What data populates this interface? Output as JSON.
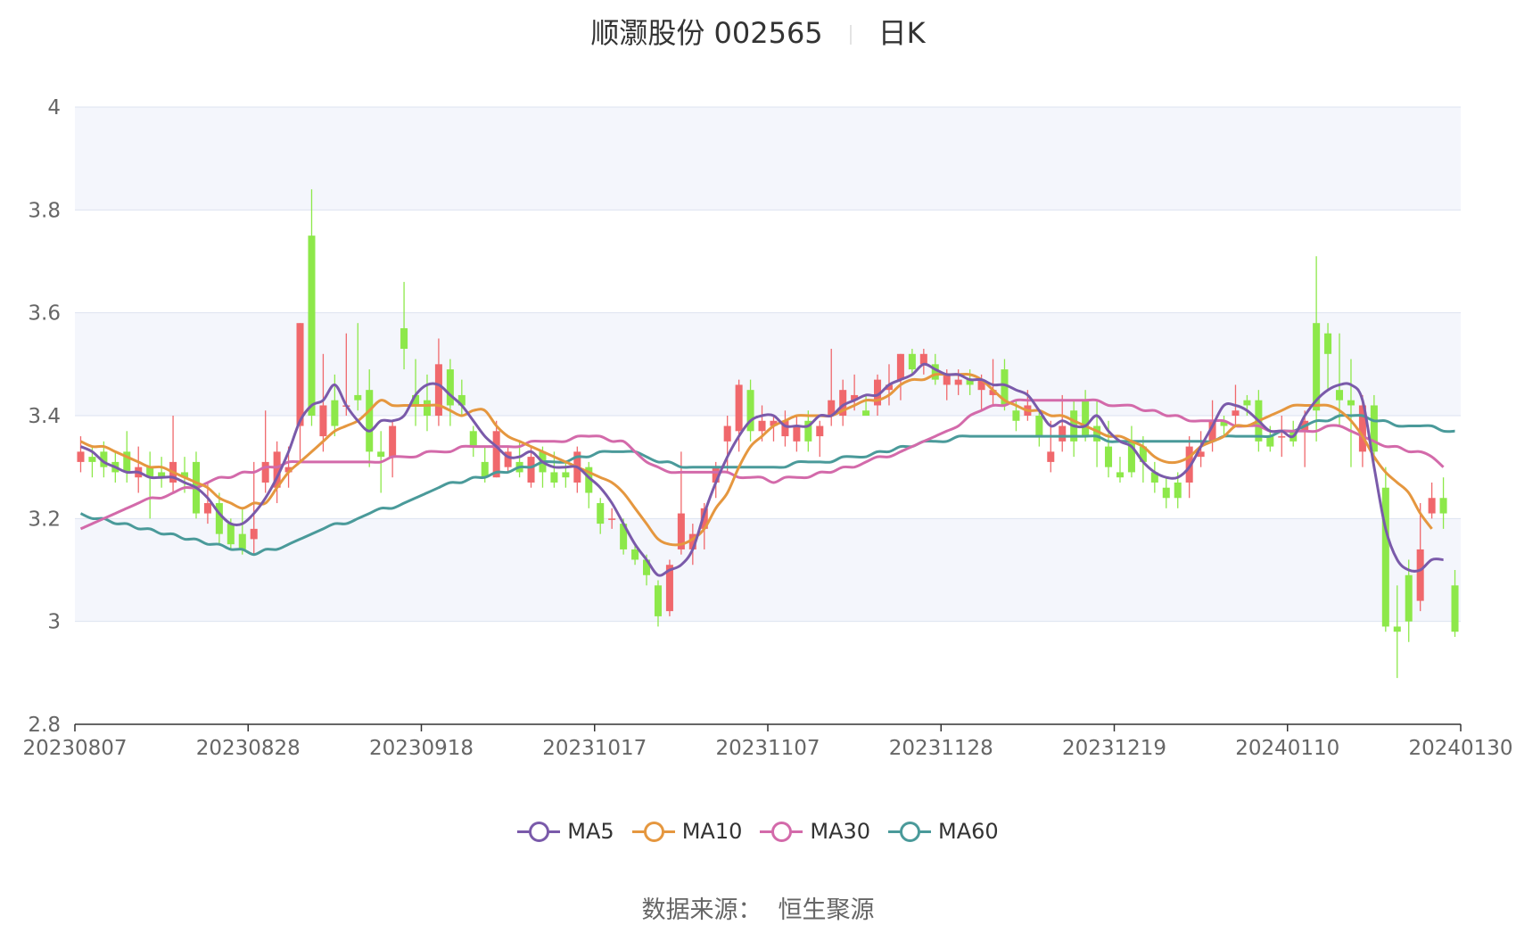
{
  "header": {
    "stock": "顺灏股份 002565",
    "period": "日K"
  },
  "source": {
    "label": "数据来源：",
    "provider": "恒生聚源"
  },
  "colors": {
    "up": "#f0686c",
    "down": "#8de84a",
    "grid": "#dde3f0",
    "band": "#f4f6fc",
    "axis": "#333333",
    "text": "#666666"
  },
  "chart_data": {
    "type": "candlestick",
    "title": "顺灏股份 002565 日K",
    "ylim": [
      2.8,
      4
    ],
    "y_ticks": [
      "4",
      "3.8",
      "3.6",
      "3.4",
      "3.2",
      "3",
      "2.8"
    ],
    "y_tick_values": [
      4,
      3.8,
      3.6,
      3.4,
      3.2,
      3,
      2.8
    ],
    "x_ticks": [
      {
        "index": 0,
        "label": "20230807"
      },
      {
        "index": 15,
        "label": "20230828"
      },
      {
        "index": 30,
        "label": "20230918"
      },
      {
        "index": 45,
        "label": "20231017"
      },
      {
        "index": 60,
        "label": "20231107"
      },
      {
        "index": 75,
        "label": "20231128"
      },
      {
        "index": 90,
        "label": "20231219"
      },
      {
        "index": 105,
        "label": "20240110"
      },
      {
        "index": 119,
        "label": "20240130"
      }
    ],
    "candles": [
      [
        3.31,
        3.33,
        3.36,
        3.29
      ],
      [
        3.32,
        3.31,
        3.34,
        3.28
      ],
      [
        3.33,
        3.3,
        3.35,
        3.28
      ],
      [
        3.31,
        3.29,
        3.33,
        3.27
      ],
      [
        3.33,
        3.29,
        3.37,
        3.27
      ],
      [
        3.28,
        3.3,
        3.34,
        3.25
      ],
      [
        3.3,
        3.28,
        3.33,
        3.2
      ],
      [
        3.29,
        3.28,
        3.32,
        3.26
      ],
      [
        3.27,
        3.31,
        3.4,
        3.25
      ],
      [
        3.29,
        3.28,
        3.32,
        3.25
      ],
      [
        3.31,
        3.21,
        3.33,
        3.2
      ],
      [
        3.21,
        3.23,
        3.27,
        3.19
      ],
      [
        3.23,
        3.17,
        3.25,
        3.15
      ],
      [
        3.19,
        3.15,
        3.2,
        3.14
      ],
      [
        3.17,
        3.14,
        3.22,
        3.13
      ],
      [
        3.16,
        3.18,
        3.31,
        3.13
      ],
      [
        3.27,
        3.31,
        3.41,
        3.25
      ],
      [
        3.26,
        3.33,
        3.35,
        3.23
      ],
      [
        3.29,
        3.3,
        3.34,
        3.26
      ],
      [
        3.38,
        3.58,
        3.58,
        3.31
      ],
      [
        3.75,
        3.4,
        3.84,
        3.38
      ],
      [
        3.36,
        3.42,
        3.52,
        3.33
      ],
      [
        3.43,
        3.38,
        3.48,
        3.36
      ],
      [
        3.42,
        3.42,
        3.56,
        3.4
      ],
      [
        3.44,
        3.43,
        3.58,
        3.41
      ],
      [
        3.45,
        3.33,
        3.49,
        3.3
      ],
      [
        3.33,
        3.32,
        3.37,
        3.25
      ],
      [
        3.32,
        3.38,
        3.39,
        3.28
      ],
      [
        3.57,
        3.53,
        3.66,
        3.49
      ],
      [
        3.44,
        3.42,
        3.51,
        3.38
      ],
      [
        3.43,
        3.4,
        3.48,
        3.37
      ],
      [
        3.4,
        3.5,
        3.55,
        3.38
      ],
      [
        3.49,
        3.42,
        3.51,
        3.38
      ],
      [
        3.44,
        3.42,
        3.47,
        3.4
      ],
      [
        3.37,
        3.34,
        3.38,
        3.32
      ],
      [
        3.31,
        3.28,
        3.34,
        3.27
      ],
      [
        3.28,
        3.37,
        3.39,
        3.28
      ],
      [
        3.3,
        3.33,
        3.34,
        3.29
      ],
      [
        3.31,
        3.29,
        3.35,
        3.28
      ],
      [
        3.27,
        3.32,
        3.34,
        3.26
      ],
      [
        3.33,
        3.29,
        3.34,
        3.26
      ],
      [
        3.29,
        3.27,
        3.33,
        3.26
      ],
      [
        3.29,
        3.28,
        3.31,
        3.26
      ],
      [
        3.27,
        3.33,
        3.34,
        3.25
      ],
      [
        3.3,
        3.25,
        3.31,
        3.22
      ],
      [
        3.23,
        3.19,
        3.24,
        3.17
      ],
      [
        3.2,
        3.2,
        3.22,
        3.18
      ],
      [
        3.19,
        3.14,
        3.2,
        3.13
      ],
      [
        3.14,
        3.12,
        3.15,
        3.11
      ],
      [
        3.12,
        3.09,
        3.13,
        3.07
      ],
      [
        3.07,
        3.01,
        3.08,
        2.99
      ],
      [
        3.02,
        3.11,
        3.12,
        3.01
      ],
      [
        3.14,
        3.21,
        3.33,
        3.13
      ],
      [
        3.14,
        3.17,
        3.19,
        3.11
      ],
      [
        3.18,
        3.22,
        3.23,
        3.14
      ],
      [
        3.27,
        3.3,
        3.31,
        3.24
      ],
      [
        3.35,
        3.38,
        3.4,
        3.29
      ],
      [
        3.37,
        3.46,
        3.47,
        3.33
      ],
      [
        3.45,
        3.37,
        3.47,
        3.35
      ],
      [
        3.37,
        3.39,
        3.42,
        3.35
      ],
      [
        3.38,
        3.39,
        3.4,
        3.35
      ],
      [
        3.36,
        3.39,
        3.41,
        3.34
      ],
      [
        3.35,
        3.38,
        3.4,
        3.33
      ],
      [
        3.39,
        3.35,
        3.41,
        3.33
      ],
      [
        3.36,
        3.38,
        3.39,
        3.32
      ],
      [
        3.4,
        3.43,
        3.53,
        3.38
      ],
      [
        3.4,
        3.45,
        3.47,
        3.38
      ],
      [
        3.43,
        3.44,
        3.48,
        3.41
      ],
      [
        3.41,
        3.4,
        3.44,
        3.4
      ],
      [
        3.42,
        3.47,
        3.48,
        3.4
      ],
      [
        3.45,
        3.46,
        3.5,
        3.42
      ],
      [
        3.47,
        3.52,
        3.52,
        3.43
      ],
      [
        3.52,
        3.49,
        3.53,
        3.48
      ],
      [
        3.5,
        3.52,
        3.53,
        3.48
      ],
      [
        3.5,
        3.47,
        3.52,
        3.46
      ],
      [
        3.46,
        3.48,
        3.49,
        3.43
      ],
      [
        3.46,
        3.47,
        3.49,
        3.44
      ],
      [
        3.47,
        3.46,
        3.49,
        3.44
      ],
      [
        3.45,
        3.47,
        3.48,
        3.41
      ],
      [
        3.44,
        3.45,
        3.51,
        3.42
      ],
      [
        3.49,
        3.42,
        3.51,
        3.41
      ],
      [
        3.41,
        3.39,
        3.43,
        3.37
      ],
      [
        3.4,
        3.42,
        3.45,
        3.39
      ],
      [
        3.4,
        3.36,
        3.41,
        3.34
      ],
      [
        3.31,
        3.33,
        3.39,
        3.29
      ],
      [
        3.35,
        3.38,
        3.44,
        3.33
      ],
      [
        3.41,
        3.35,
        3.43,
        3.32
      ],
      [
        3.43,
        3.36,
        3.45,
        3.35
      ],
      [
        3.38,
        3.35,
        3.43,
        3.3
      ],
      [
        3.34,
        3.3,
        3.39,
        3.28
      ],
      [
        3.29,
        3.28,
        3.32,
        3.27
      ],
      [
        3.35,
        3.29,
        3.38,
        3.28
      ],
      [
        3.34,
        3.31,
        3.36,
        3.27
      ],
      [
        3.29,
        3.27,
        3.31,
        3.25
      ],
      [
        3.26,
        3.24,
        3.28,
        3.22
      ],
      [
        3.27,
        3.24,
        3.29,
        3.22
      ],
      [
        3.27,
        3.34,
        3.36,
        3.24
      ],
      [
        3.32,
        3.33,
        3.37,
        3.3
      ],
      [
        3.35,
        3.39,
        3.43,
        3.33
      ],
      [
        3.39,
        3.38,
        3.4,
        3.36
      ],
      [
        3.4,
        3.41,
        3.46,
        3.38
      ],
      [
        3.43,
        3.42,
        3.44,
        3.4
      ],
      [
        3.43,
        3.35,
        3.45,
        3.33
      ],
      [
        3.36,
        3.34,
        3.38,
        3.33
      ],
      [
        3.36,
        3.36,
        3.4,
        3.32
      ],
      [
        3.37,
        3.35,
        3.39,
        3.34
      ],
      [
        3.37,
        3.39,
        3.41,
        3.3
      ],
      [
        3.58,
        3.41,
        3.71,
        3.35
      ],
      [
        3.56,
        3.52,
        3.58,
        3.45
      ],
      [
        3.45,
        3.43,
        3.56,
        3.38
      ],
      [
        3.43,
        3.42,
        3.51,
        3.3
      ],
      [
        3.33,
        3.42,
        3.44,
        3.3
      ],
      [
        3.42,
        3.33,
        3.44,
        3.3
      ],
      [
        3.26,
        2.99,
        3.3,
        2.98
      ],
      [
        2.99,
        2.98,
        3.07,
        2.89
      ],
      [
        3.09,
        3.0,
        3.12,
        2.96
      ],
      [
        3.04,
        3.14,
        3.23,
        3.02
      ],
      [
        3.21,
        3.24,
        3.27,
        3.2
      ],
      [
        3.24,
        3.21,
        3.28,
        3.18
      ],
      [
        3.07,
        2.98,
        3.1,
        2.97
      ]
    ],
    "series": [
      {
        "name": "MA5",
        "color": "#7a5aaa",
        "values": [
          3.34,
          3.33,
          3.31,
          3.3,
          3.29,
          3.29,
          3.28,
          3.28,
          3.28,
          3.27,
          3.26,
          3.24,
          3.21,
          3.19,
          3.19,
          3.21,
          3.24,
          3.28,
          3.33,
          3.39,
          3.42,
          3.43,
          3.46,
          3.42,
          3.39,
          3.37,
          3.39,
          3.39,
          3.4,
          3.44,
          3.46,
          3.46,
          3.44,
          3.42,
          3.39,
          3.36,
          3.34,
          3.32,
          3.32,
          3.33,
          3.31,
          3.3,
          3.3,
          3.3,
          3.28,
          3.26,
          3.23,
          3.19,
          3.15,
          3.12,
          3.09,
          3.1,
          3.11,
          3.14,
          3.21,
          3.27,
          3.32,
          3.36,
          3.39,
          3.4,
          3.4,
          3.38,
          3.38,
          3.38,
          3.4,
          3.4,
          3.42,
          3.43,
          3.44,
          3.44,
          3.46,
          3.47,
          3.48,
          3.5,
          3.49,
          3.48,
          3.48,
          3.47,
          3.47,
          3.46,
          3.46,
          3.45,
          3.44,
          3.41,
          3.38,
          3.39,
          3.38,
          3.38,
          3.4,
          3.37,
          3.35,
          3.34,
          3.31,
          3.29,
          3.28,
          3.28,
          3.3,
          3.34,
          3.38,
          3.42,
          3.42,
          3.41,
          3.39,
          3.37,
          3.37,
          3.36,
          3.4,
          3.43,
          3.45,
          3.46,
          3.46,
          3.43,
          3.3,
          3.18,
          3.12,
          3.1,
          3.1,
          3.12,
          3.12
        ]
      },
      {
        "name": "MA10",
        "color": "#e5973f",
        "values": [
          3.35,
          3.34,
          3.34,
          3.33,
          3.32,
          3.31,
          3.3,
          3.3,
          3.29,
          3.28,
          3.27,
          3.26,
          3.24,
          3.23,
          3.22,
          3.23,
          3.23,
          3.26,
          3.29,
          3.31,
          3.33,
          3.35,
          3.37,
          3.38,
          3.39,
          3.41,
          3.43,
          3.42,
          3.42,
          3.42,
          3.42,
          3.42,
          3.41,
          3.4,
          3.41,
          3.41,
          3.38,
          3.36,
          3.35,
          3.34,
          3.33,
          3.32,
          3.31,
          3.3,
          3.29,
          3.28,
          3.27,
          3.25,
          3.22,
          3.19,
          3.16,
          3.15,
          3.15,
          3.16,
          3.18,
          3.22,
          3.25,
          3.3,
          3.34,
          3.36,
          3.38,
          3.39,
          3.4,
          3.4,
          3.4,
          3.4,
          3.41,
          3.42,
          3.43,
          3.43,
          3.44,
          3.46,
          3.47,
          3.47,
          3.48,
          3.48,
          3.48,
          3.48,
          3.47,
          3.45,
          3.43,
          3.42,
          3.41,
          3.41,
          3.4,
          3.4,
          3.39,
          3.38,
          3.37,
          3.36,
          3.36,
          3.35,
          3.34,
          3.32,
          3.31,
          3.31,
          3.32,
          3.34,
          3.35,
          3.36,
          3.38,
          3.38,
          3.39,
          3.4,
          3.41,
          3.42,
          3.42,
          3.42,
          3.42,
          3.41,
          3.39,
          3.36,
          3.32,
          3.29,
          3.27,
          3.25,
          3.21,
          3.18
        ]
      },
      {
        "name": "MA30",
        "color": "#d36aaa",
        "values": [
          3.18,
          3.19,
          3.2,
          3.21,
          3.22,
          3.23,
          3.24,
          3.24,
          3.25,
          3.26,
          3.26,
          3.27,
          3.28,
          3.28,
          3.29,
          3.29,
          3.3,
          3.3,
          3.31,
          3.31,
          3.31,
          3.31,
          3.31,
          3.31,
          3.31,
          3.31,
          3.31,
          3.32,
          3.32,
          3.32,
          3.33,
          3.33,
          3.33,
          3.34,
          3.34,
          3.34,
          3.34,
          3.34,
          3.34,
          3.35,
          3.35,
          3.35,
          3.35,
          3.36,
          3.36,
          3.36,
          3.35,
          3.35,
          3.33,
          3.31,
          3.3,
          3.29,
          3.29,
          3.29,
          3.29,
          3.29,
          3.29,
          3.28,
          3.28,
          3.28,
          3.27,
          3.28,
          3.28,
          3.28,
          3.29,
          3.29,
          3.3,
          3.3,
          3.31,
          3.32,
          3.32,
          3.33,
          3.34,
          3.35,
          3.36,
          3.37,
          3.38,
          3.4,
          3.41,
          3.42,
          3.42,
          3.43,
          3.43,
          3.43,
          3.43,
          3.43,
          3.43,
          3.43,
          3.43,
          3.42,
          3.42,
          3.42,
          3.41,
          3.41,
          3.4,
          3.4,
          3.39,
          3.39,
          3.39,
          3.39,
          3.38,
          3.38,
          3.38,
          3.37,
          3.37,
          3.37,
          3.37,
          3.37,
          3.38,
          3.38,
          3.37,
          3.36,
          3.35,
          3.34,
          3.34,
          3.33,
          3.33,
          3.32,
          3.3
        ]
      },
      {
        "name": "MA60",
        "color": "#4a9a9a",
        "values": [
          3.21,
          3.2,
          3.2,
          3.19,
          3.19,
          3.18,
          3.18,
          3.17,
          3.17,
          3.16,
          3.16,
          3.15,
          3.15,
          3.14,
          3.14,
          3.13,
          3.14,
          3.14,
          3.15,
          3.16,
          3.17,
          3.18,
          3.19,
          3.19,
          3.2,
          3.21,
          3.22,
          3.22,
          3.23,
          3.24,
          3.25,
          3.26,
          3.27,
          3.27,
          3.28,
          3.28,
          3.29,
          3.29,
          3.3,
          3.3,
          3.31,
          3.31,
          3.31,
          3.32,
          3.32,
          3.33,
          3.33,
          3.33,
          3.33,
          3.32,
          3.31,
          3.31,
          3.3,
          3.3,
          3.3,
          3.3,
          3.3,
          3.3,
          3.3,
          3.3,
          3.3,
          3.3,
          3.31,
          3.31,
          3.31,
          3.31,
          3.32,
          3.32,
          3.32,
          3.33,
          3.33,
          3.34,
          3.34,
          3.35,
          3.35,
          3.35,
          3.36,
          3.36,
          3.36,
          3.36,
          3.36,
          3.36,
          3.36,
          3.36,
          3.36,
          3.36,
          3.36,
          3.36,
          3.36,
          3.35,
          3.35,
          3.35,
          3.35,
          3.35,
          3.35,
          3.35,
          3.35,
          3.35,
          3.35,
          3.36,
          3.36,
          3.36,
          3.36,
          3.36,
          3.37,
          3.37,
          3.38,
          3.39,
          3.39,
          3.4,
          3.4,
          3.4,
          3.39,
          3.39,
          3.38,
          3.38,
          3.38,
          3.38,
          3.37,
          3.37
        ]
      }
    ]
  }
}
